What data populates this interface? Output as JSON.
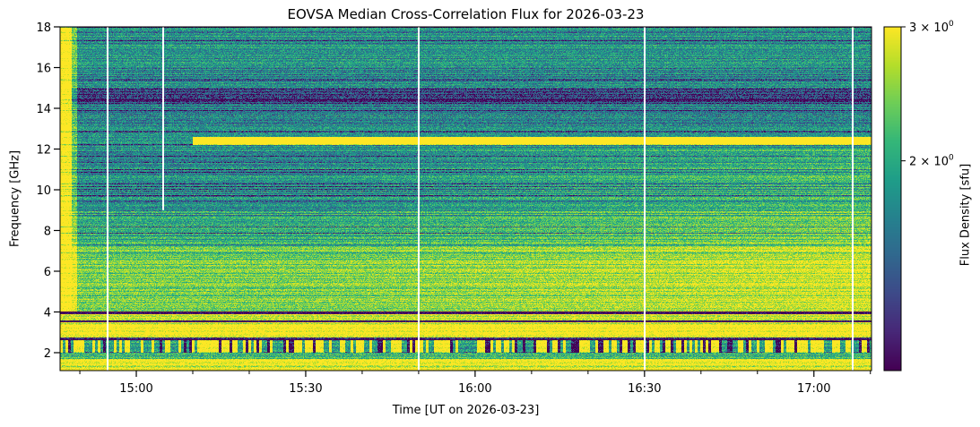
{
  "chart_data": {
    "type": "heatmap",
    "title": "EOVSA Median Cross-Correlation Flux for 2026-03-23",
    "xlabel": "Time [UT on 2026-03-23]",
    "ylabel": "Frequency [GHz]",
    "xlim_minutes_ut": [
      886.5,
      1030.2
    ],
    "ylim": [
      1.12,
      18
    ],
    "x_major_ticks": [
      {
        "t": 900,
        "label": "15:00"
      },
      {
        "t": 930,
        "label": "15:30"
      },
      {
        "t": 960,
        "label": "16:00"
      },
      {
        "t": 990,
        "label": "16:30"
      },
      {
        "t": 1020,
        "label": "17:00"
      }
    ],
    "x_minor_tick_minutes": [
      890,
      910,
      920,
      940,
      950,
      970,
      980,
      1000,
      1010,
      1030
    ],
    "y_ticks": [
      2,
      4,
      6,
      8,
      10,
      12,
      14,
      16,
      18
    ],
    "colorbar": {
      "label": "Flux Density [sfu]",
      "scale": "log",
      "colormap": "viridis",
      "vmin": 1.06,
      "vmax": 3.0,
      "ticks": [
        {
          "v": 3,
          "mant": "3",
          "exp": "0"
        },
        {
          "v": 2,
          "mant": "2",
          "exp": "0"
        }
      ]
    },
    "frequency_profile_sfu": [
      {
        "f": [
          16.0,
          18.0
        ],
        "level": 1.8
      },
      {
        "f": [
          15.0,
          16.0
        ],
        "level": 1.7
      },
      {
        "f": [
          14.3,
          15.0
        ],
        "level": 1.3
      },
      {
        "f": [
          12.6,
          14.3
        ],
        "level": 1.7
      },
      {
        "f": [
          12.2,
          12.6
        ],
        "level": 3.4,
        "from_minute": 910
      },
      {
        "f": [
          9.0,
          12.2
        ],
        "level": 1.75
      },
      {
        "f": [
          7.2,
          9.0
        ],
        "level": 2.0
      },
      {
        "f": [
          4.0,
          7.2
        ],
        "level": 2.4
      },
      {
        "f": [
          3.9,
          4.0
        ],
        "level": 1.0
      },
      {
        "f": [
          3.6,
          3.9
        ],
        "level": 2.8
      },
      {
        "f": [
          3.5,
          3.6
        ],
        "level": 1.0
      },
      {
        "f": [
          2.75,
          3.5
        ],
        "level": 3.0
      },
      {
        "f": [
          2.6,
          2.75
        ],
        "level": 1.0
      },
      {
        "f": [
          2.0,
          2.6
        ],
        "level": 2.0,
        "striped": true
      },
      {
        "f": [
          1.7,
          2.0
        ],
        "level": 2.1
      },
      {
        "f": [
          1.12,
          1.7
        ],
        "level": 3.0
      }
    ],
    "data_gaps_minutes": [
      {
        "t": 894.8,
        "fmin": 1.12
      },
      {
        "t": 904.6,
        "fmin": 9.0
      },
      {
        "t": 949.8,
        "fmin": 1.12
      },
      {
        "t": 989.8,
        "fmin": 1.12
      },
      {
        "t": 1026.7,
        "fmin": 1.12
      }
    ]
  }
}
